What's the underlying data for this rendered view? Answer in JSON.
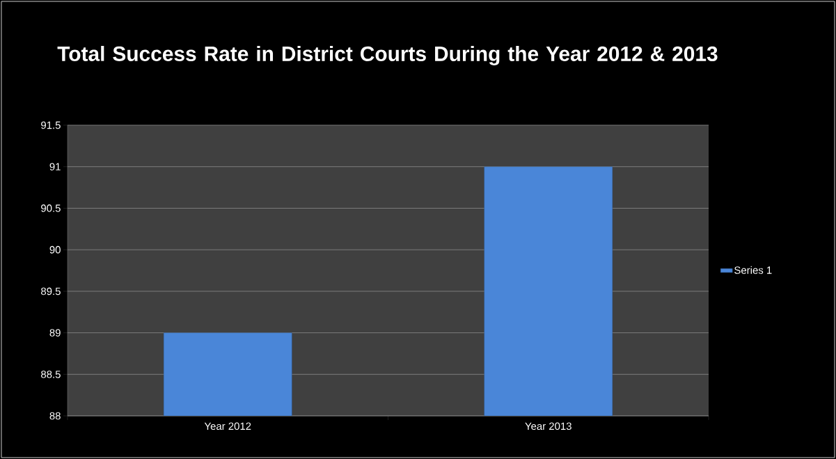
{
  "chart_data": {
    "type": "bar",
    "title": "Total Success Rate in District Courts During the Year 2012 & 2013",
    "categories": [
      "Year 2012",
      "Year 2013"
    ],
    "series": [
      {
        "name": "Series 1",
        "color": "#4a86d8",
        "values": [
          89,
          91
        ]
      }
    ],
    "ylim": [
      88,
      91.5
    ],
    "yticks": [
      88,
      88.5,
      89,
      89.5,
      90,
      90.5,
      91,
      91.5
    ],
    "grid": "y",
    "legend": "right"
  }
}
